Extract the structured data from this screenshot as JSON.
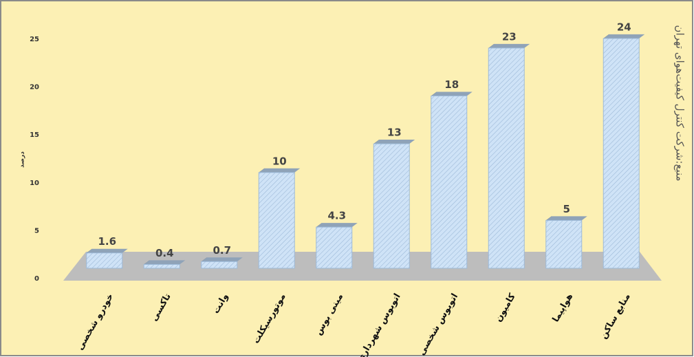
{
  "chart_data": {
    "type": "bar3d",
    "y_label": "درصد",
    "source": "منبع:شرکت کنترل کیفیت‌هوای تهران",
    "categories": [
      "خودرو شخصی",
      "تاکسی",
      "وانت",
      "موتورسیکلت",
      "مینی بوس",
      "اتوبوس شهرداری",
      "اتوبوس شخصی",
      "کامیون",
      "هواپیما",
      "منابع ساکن"
    ],
    "values": [
      1.6,
      0.4,
      0.7,
      10,
      4.3,
      13,
      18,
      23,
      5,
      24
    ],
    "color": "#cfe3f7",
    "ylim": [
      0,
      25
    ],
    "yticks": [
      0,
      5,
      10,
      15,
      20,
      25
    ]
  }
}
